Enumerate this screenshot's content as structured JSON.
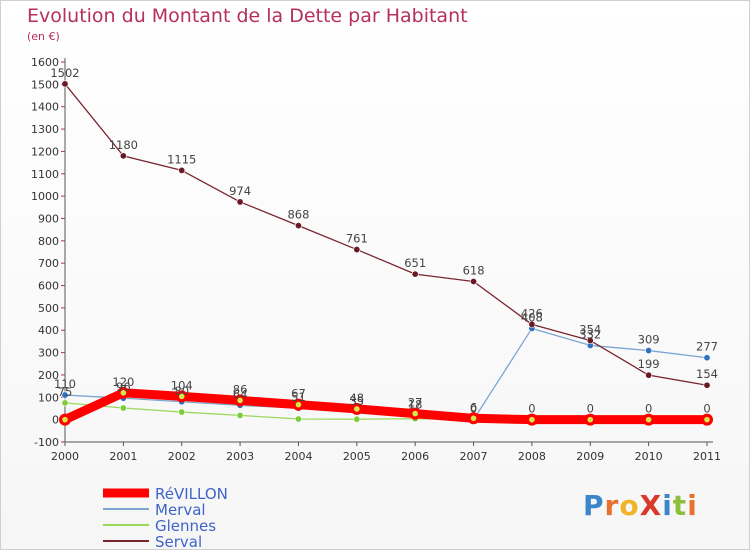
{
  "title": "Evolution du Montant de la Dette par Habitant",
  "subtitle": "(en €)",
  "logo": {
    "text": "ProXiti",
    "letter_colors": [
      "#3a86c8",
      "#e8712f",
      "#f0b32a",
      "#d9392b",
      "#3a86c8",
      "#8dbf3c",
      "#e8712f"
    ]
  },
  "chart_data": {
    "type": "line",
    "x": [
      2000,
      2001,
      2002,
      2003,
      2004,
      2005,
      2006,
      2007,
      2008,
      2009,
      2010,
      2011
    ],
    "ylim": [
      -100,
      1600
    ],
    "yticks": [
      -100,
      0,
      100,
      200,
      300,
      400,
      500,
      600,
      700,
      800,
      900,
      1000,
      1100,
      1200,
      1300,
      1400,
      1500,
      1600
    ],
    "grid": false,
    "legend_position": "bottom-left",
    "series": [
      {
        "name": "RéVILLON",
        "color": "#ff0000",
        "point_color": "#d4e84a",
        "values": [
          0,
          120,
          104,
          86,
          67,
          48,
          27,
          6,
          0,
          0,
          0,
          0
        ]
      },
      {
        "name": "Merval",
        "color": "#7aa6d0",
        "point_color": "#2f73c0",
        "values": [
          110,
          96,
          80,
          64,
          51,
          35,
          18,
          0,
          408,
          332,
          309,
          277
        ]
      },
      {
        "name": "Glennes",
        "color": "#9ad85a",
        "point_color": "#7ccd3a",
        "values": [
          75,
          52,
          34,
          19,
          3,
          2,
          4,
          0,
          0,
          0,
          0,
          0
        ]
      },
      {
        "name": "Serval",
        "color": "#7a2430",
        "point_color": "#6a1a25",
        "values": [
          1502,
          1180,
          1115,
          974,
          868,
          761,
          651,
          618,
          426,
          354,
          199,
          154
        ]
      }
    ],
    "point_labels": [
      {
        "x": 2000,
        "text": "1502",
        "value": 1502
      },
      {
        "x": 2001,
        "text": "1180",
        "value": 1180
      },
      {
        "x": 2002,
        "text": "1115",
        "value": 1115
      },
      {
        "x": 2003,
        "text": "974",
        "value": 974
      },
      {
        "x": 2004,
        "text": "868",
        "value": 868
      },
      {
        "x": 2005,
        "text": "761",
        "value": 761
      },
      {
        "x": 2006,
        "text": "651",
        "value": 651
      },
      {
        "x": 2007,
        "text": "618",
        "value": 618
      },
      {
        "x": 2008,
        "text": "426",
        "value": 426
      },
      {
        "x": 2008,
        "text": "408",
        "value": 408
      },
      {
        "x": 2009,
        "text": "354",
        "value": 354
      },
      {
        "x": 2009,
        "text": "332",
        "value": 332
      },
      {
        "x": 2010,
        "text": "309",
        "value": 309
      },
      {
        "x": 2010,
        "text": "199",
        "value": 199
      },
      {
        "x": 2011,
        "text": "277",
        "value": 277
      },
      {
        "x": 2011,
        "text": "154",
        "value": 154
      },
      {
        "x": 2000,
        "text": "110",
        "value": 110
      },
      {
        "x": 2000,
        "text": "75",
        "value": 75
      },
      {
        "x": 2001,
        "text": "120",
        "value": 120
      },
      {
        "x": 2001,
        "text": "96",
        "value": 96
      },
      {
        "x": 2002,
        "text": "104",
        "value": 104
      },
      {
        "x": 2002,
        "text": "80",
        "value": 80
      },
      {
        "x": 2003,
        "text": "86",
        "value": 86
      },
      {
        "x": 2003,
        "text": "64",
        "value": 64
      },
      {
        "x": 2004,
        "text": "67",
        "value": 67
      },
      {
        "x": 2004,
        "text": "51",
        "value": 51
      },
      {
        "x": 2005,
        "text": "48",
        "value": 48
      },
      {
        "x": 2005,
        "text": "35",
        "value": 35
      },
      {
        "x": 2006,
        "text": "27",
        "value": 27
      },
      {
        "x": 2006,
        "text": "18",
        "value": 18
      },
      {
        "x": 2007,
        "text": "6",
        "value": 6
      },
      {
        "x": 2007,
        "text": "0",
        "value": 0
      },
      {
        "x": 2008,
        "text": "0",
        "value": 0
      },
      {
        "x": 2009,
        "text": "0",
        "value": 0
      },
      {
        "x": 2010,
        "text": "0",
        "value": 0
      },
      {
        "x": 2011,
        "text": "0",
        "value": 0
      }
    ]
  }
}
